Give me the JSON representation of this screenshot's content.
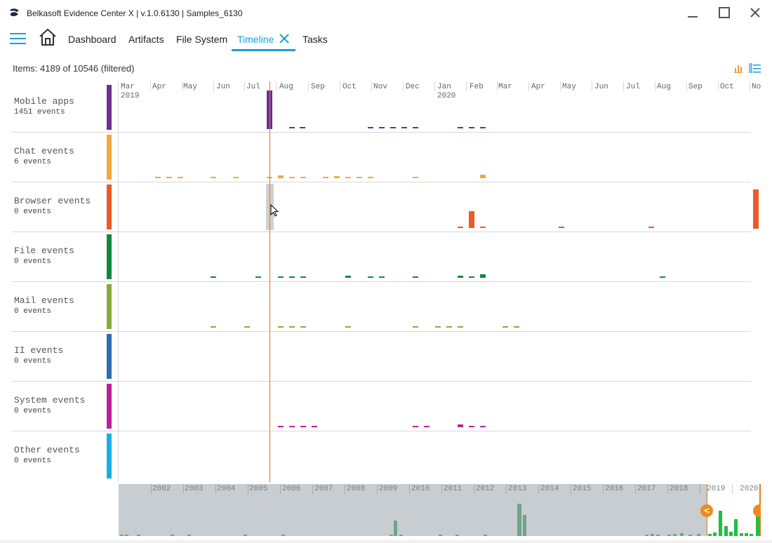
{
  "window": {
    "title": "Belkasoft Evidence Center X | v.1.0.6130 | Samples_6130",
    "controls": [
      "minimize-icon",
      "maximize-icon",
      "close-icon"
    ]
  },
  "nav": {
    "menu_icon": "hamburger-icon",
    "home_icon": "home-icon",
    "tabs": [
      {
        "label": "Dashboard",
        "active": false
      },
      {
        "label": "Artifacts",
        "active": false
      },
      {
        "label": "File System",
        "active": false
      },
      {
        "label": "Timeline",
        "active": true,
        "closable": true
      },
      {
        "label": "Tasks",
        "active": false
      }
    ]
  },
  "toolbar": {
    "items_count": "Items: 4189 of 10546 (filtered)",
    "view_icons": [
      "bar-chart-icon",
      "list-view-icon"
    ]
  },
  "timeline": {
    "months": [
      {
        "label": "Mar",
        "year": "2019"
      },
      {
        "label": "Apr"
      },
      {
        "label": "May"
      },
      {
        "label": "Jun"
      },
      {
        "label": "Jul"
      },
      {
        "label": "Aug"
      },
      {
        "label": "Sep"
      },
      {
        "label": "Oct"
      },
      {
        "label": "Nov"
      },
      {
        "label": "Dec"
      },
      {
        "label": "Jan",
        "year": "2020"
      },
      {
        "label": "Feb"
      },
      {
        "label": "Mar"
      },
      {
        "label": "Apr"
      },
      {
        "label": "May"
      },
      {
        "label": "Jun"
      },
      {
        "label": "Jul"
      },
      {
        "label": "Aug"
      },
      {
        "label": "Sep"
      },
      {
        "label": "Oct"
      },
      {
        "label": "No"
      }
    ],
    "rows": [
      {
        "name": "Mobile apps",
        "count": "1451 events",
        "color": "#6b2f8e"
      },
      {
        "name": "Chat events",
        "count": "6 events",
        "color": "#f2a93b"
      },
      {
        "name": "Browser events",
        "count": "0 events",
        "color": "#eb5a28"
      },
      {
        "name": "File events",
        "count": "0 events",
        "color": "#0f8a3c"
      },
      {
        "name": "Mail events",
        "count": "0 events",
        "color": "#8aab3c"
      },
      {
        "name": "II events",
        "count": "0 events",
        "color": "#2e6db5"
      },
      {
        "name": "System events",
        "count": "0 events",
        "color": "#bd1f9b"
      },
      {
        "name": "Other events",
        "count": "0 events",
        "color": "#17afe3"
      }
    ],
    "cursor_color": "#e07b1f"
  },
  "overview": {
    "years": [
      "2002",
      "2003",
      "2004",
      "2005",
      "2006",
      "2007",
      "2008",
      "2009",
      "2010",
      "2011",
      "2012",
      "2013",
      "2014",
      "2015",
      "2016",
      "2017",
      "2018",
      "2019",
      "2020"
    ],
    "handle_left_glyph": "<",
    "handle_color": "#f08a1c",
    "bar_color_history": "#6fa489",
    "bar_color_selected": "#1fbf3f"
  }
}
